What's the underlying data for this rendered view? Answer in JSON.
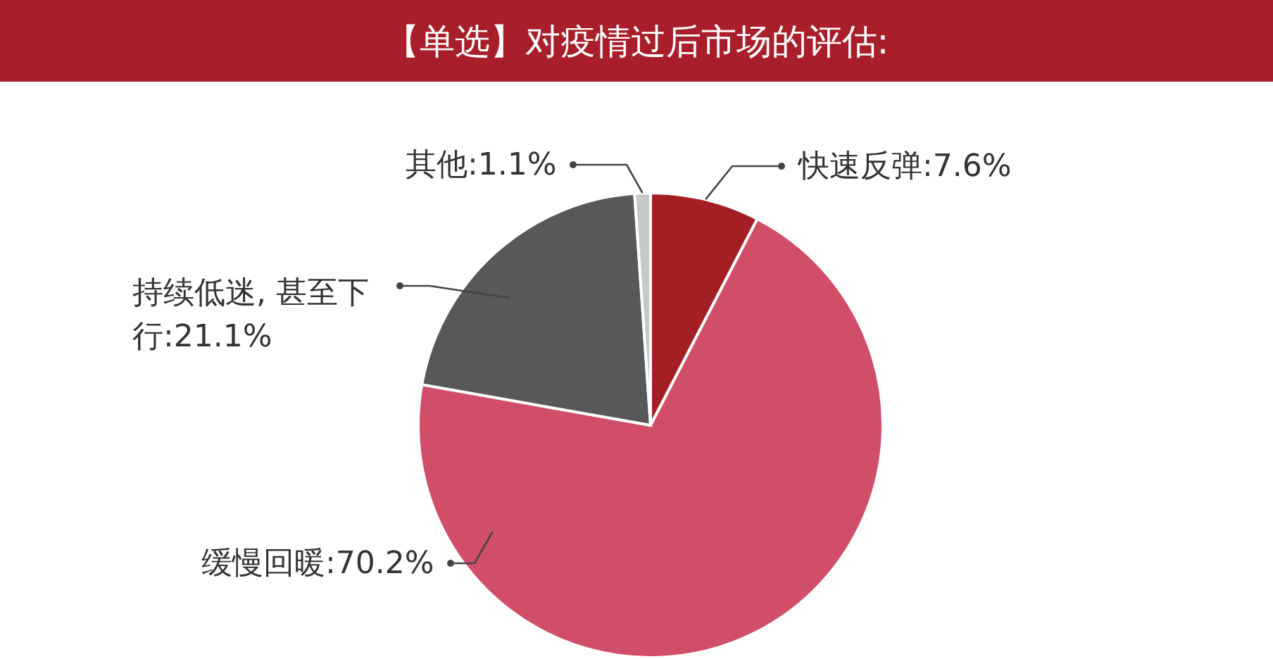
{
  "chart_data": {
    "type": "pie",
    "title": "【单选】对疫情过后市场的评估:",
    "categories": [
      "快速反弹",
      "缓慢回暖",
      "持续低迷, 甚至下行",
      "其他"
    ],
    "values": [
      7.6,
      70.2,
      21.1,
      1.1
    ],
    "colors": [
      "#a31f24",
      "#d14e68",
      "#58585a",
      "#c8c8c8"
    ],
    "value_labels": [
      "7.6%",
      "70.2%",
      "21.1%",
      "1.1%"
    ]
  }
}
